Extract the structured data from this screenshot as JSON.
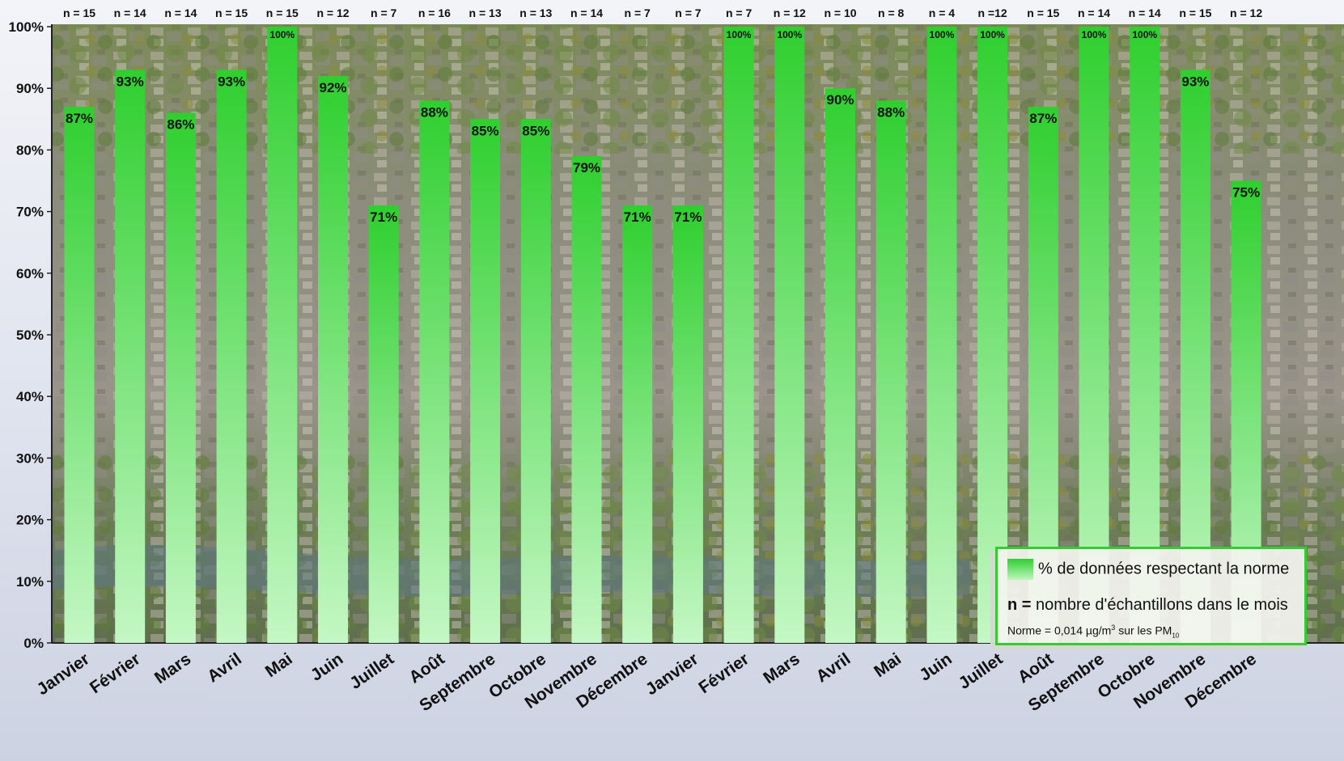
{
  "chart_data": {
    "type": "bar",
    "categories": [
      "Janvier",
      "Février",
      "Mars",
      "Avril",
      "Mai",
      "Juin",
      "Juillet",
      "Août",
      "Septembre",
      "Octobre",
      "Novembre",
      "Décembre",
      "Janvier",
      "Février",
      "Mars",
      "Avril",
      "Mai",
      "Juin",
      "Juillet",
      "Août",
      "Septembre",
      "Octobre",
      "Novembre",
      "Décembre"
    ],
    "values": [
      87,
      93,
      86,
      93,
      100,
      92,
      71,
      88,
      85,
      85,
      79,
      71,
      71,
      100,
      100,
      90,
      88,
      100,
      100,
      87,
      100,
      100,
      93,
      75
    ],
    "value_labels": [
      "87%",
      "93%",
      "86%",
      "93%",
      "100%",
      "92%",
      "71%",
      "88%",
      "85%",
      "85%",
      "79%",
      "71%",
      "71%",
      "100%",
      "100%",
      "90%",
      "88%",
      "100%",
      "100%",
      "87%",
      "100%",
      "100%",
      "93%",
      "75%"
    ],
    "n_labels": [
      "n = 15",
      "n = 14",
      "n = 14",
      "n = 15",
      "n = 15",
      "n = 12",
      "n = 7",
      "n = 16",
      "n = 13",
      "n = 13",
      "n = 14",
      "n = 7",
      "n = 7",
      "n = 7",
      "n = 12",
      "n = 10",
      "n = 8",
      "n = 4",
      "n =12",
      "n = 15",
      "n = 14",
      "n = 14",
      "n = 15",
      "n = 12"
    ],
    "yticks": [
      "0%",
      "10%",
      "20%",
      "30%",
      "40%",
      "50%",
      "60%",
      "70%",
      "80%",
      "90%",
      "100%"
    ],
    "ylim": [
      0,
      100
    ],
    "grid": false,
    "bar_color_top": "#2fcf2f",
    "bar_color_bottom": "#c4f7c4",
    "legend_placement": "bottom-right"
  },
  "legend": {
    "series_label": "% de données respectant la norme",
    "n_bold": "n =",
    "n_text": "nombre d'échantillons dans le mois",
    "norme_prefix": "Norme = 0,014 µg/m",
    "norme_sup": "3",
    "norme_mid": "sur les PM",
    "norme_sub": "10"
  },
  "background": {
    "description_icon": "city-photo-background"
  }
}
